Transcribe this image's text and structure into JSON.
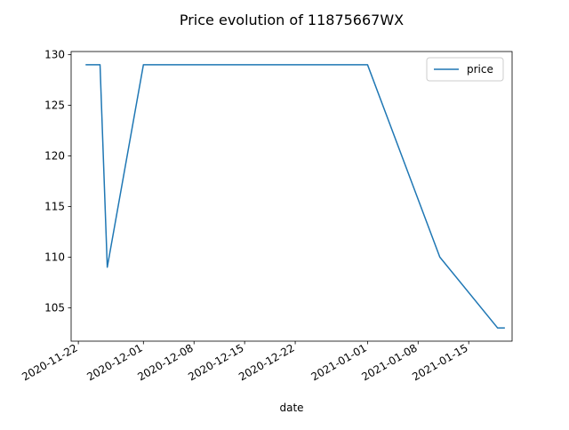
{
  "chart_data": {
    "type": "line",
    "title": "Price evolution of 11875667WX",
    "xlabel": "date",
    "ylabel": "",
    "x_type": "date",
    "xlim": [
      "2020-11-21",
      "2021-01-21"
    ],
    "ylim": [
      101.7,
      130.3
    ],
    "x_ticks": [
      {
        "value": "2020-11-22",
        "label": "2020-11-22"
      },
      {
        "value": "2020-12-01",
        "label": "2020-12-01"
      },
      {
        "value": "2020-12-08",
        "label": "2020-12-08"
      },
      {
        "value": "2020-12-15",
        "label": "2020-12-15"
      },
      {
        "value": "2020-12-22",
        "label": "2020-12-22"
      },
      {
        "value": "2021-01-01",
        "label": "2021-01-01"
      },
      {
        "value": "2021-01-08",
        "label": "2021-01-08"
      },
      {
        "value": "2021-01-15",
        "label": "2021-01-15"
      }
    ],
    "y_ticks": [
      105,
      110,
      115,
      120,
      125,
      130
    ],
    "grid": false,
    "legend": {
      "position": "top-right"
    },
    "series": [
      {
        "name": "price",
        "color": "#1f77b4",
        "points": [
          {
            "x": "2020-11-23",
            "y": 129
          },
          {
            "x": "2020-11-25",
            "y": 129
          },
          {
            "x": "2020-11-26",
            "y": 109
          },
          {
            "x": "2020-12-01",
            "y": 129
          },
          {
            "x": "2021-01-01",
            "y": 129
          },
          {
            "x": "2021-01-11",
            "y": 110
          },
          {
            "x": "2021-01-19",
            "y": 103
          },
          {
            "x": "2021-01-20",
            "y": 103
          }
        ]
      }
    ]
  }
}
